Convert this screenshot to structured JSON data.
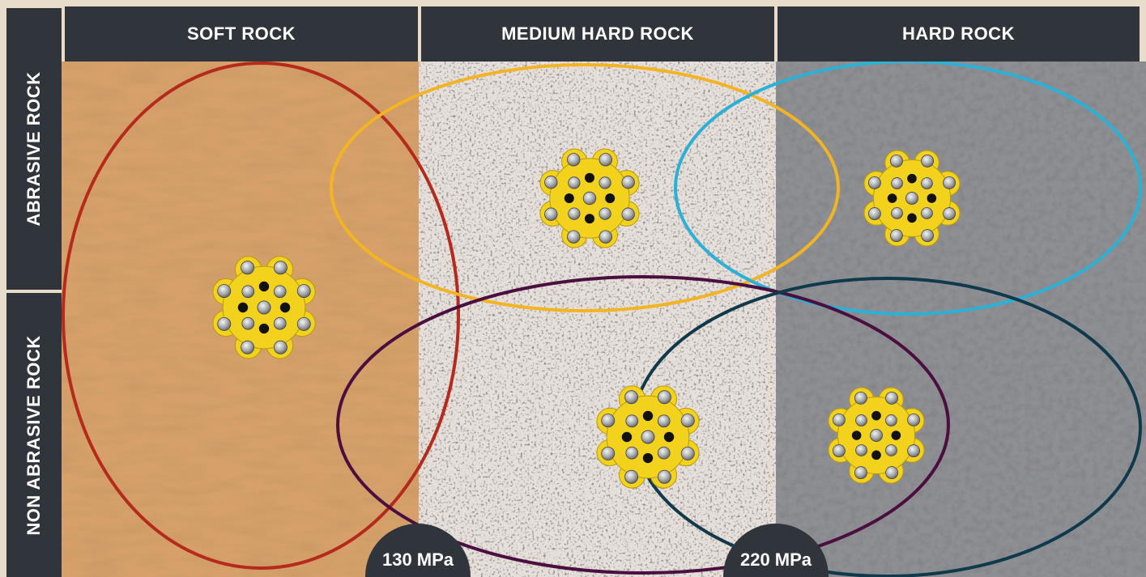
{
  "columns": [
    "SOFT ROCK",
    "MEDIUM HARD ROCK",
    "HARD ROCK"
  ],
  "rows": [
    "ABRASIVE ROCK",
    "NON ABRASIVE ROCK"
  ],
  "thresholds": [
    "130 MPa",
    "220 MPa"
  ],
  "colors": {
    "header_bg": "#30343b",
    "header_text": "#ffffff",
    "soft_rock_zone": "#b52a1c",
    "medium_abrasive_zone": "#f2b423",
    "hard_abrasive_zone": "#2bb0d6",
    "medium_non_abrasive_zone": "#4a0f3f",
    "hard_non_abrasive_zone": "#0f3a4c",
    "bit_body": "#f2d21c",
    "soft_rock_texture": "#d6a06a",
    "medium_rock_texture": "#e6dfda",
    "hard_rock_texture": "#8e8f93"
  },
  "drill_bits": [
    {
      "name": "soft-rock-bit"
    },
    {
      "name": "medium-abrasive-bit"
    },
    {
      "name": "hard-abrasive-bit"
    },
    {
      "name": "medium-non-abrasive-bit"
    },
    {
      "name": "hard-non-abrasive-bit"
    }
  ]
}
